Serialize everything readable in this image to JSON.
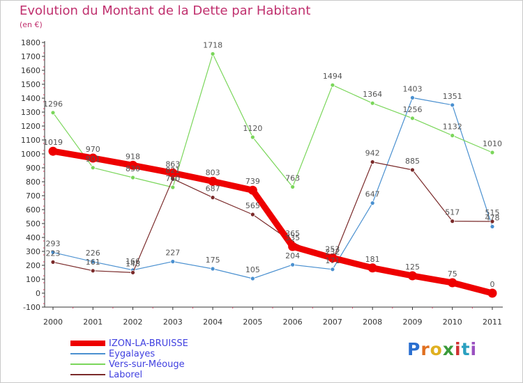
{
  "chart_data": {
    "type": "line",
    "title": "Evolution du Montant de la Dette par Habitant",
    "subtitle": "(en €)",
    "xlabel": "",
    "ylabel": "",
    "x": [
      "2000",
      "2001",
      "2002",
      "2003",
      "2004",
      "2005",
      "2006",
      "2007",
      "2008",
      "2009",
      "2010",
      "2011"
    ],
    "ylim": [
      -100,
      1800
    ],
    "yticks": [
      -100,
      0,
      100,
      200,
      300,
      400,
      500,
      600,
      700,
      800,
      900,
      1000,
      1100,
      1200,
      1300,
      1400,
      1500,
      1600,
      1700,
      1800
    ],
    "grid": false,
    "legend_position": "bottom-left",
    "series": [
      {
        "name": "IZON-LA-BRUISSE",
        "color": "#ee0000",
        "values": [
          1019,
          970,
          918,
          863,
          803,
          739,
          335,
          253,
          181,
          125,
          75,
          0
        ],
        "labels": [
          "1019",
          "970",
          "918",
          "863",
          "803",
          "739",
          "335",
          "253",
          "181",
          "125",
          "75",
          "0"
        ]
      },
      {
        "name": "Eygalayes",
        "color": "#4a90d0",
        "values": [
          293,
          226,
          166,
          227,
          175,
          105,
          204,
          171,
          647,
          1403,
          1351,
          478
        ],
        "labels": [
          "293",
          "226",
          "166",
          "227",
          "175",
          "105",
          "204",
          "171",
          "647",
          "1403",
          "1351",
          "478"
        ]
      },
      {
        "name": "Vers-sur-Méouge",
        "color": "#7ad65a",
        "values": [
          1296,
          901,
          830,
          760,
          1718,
          1120,
          763,
          1494,
          1364,
          1256,
          1132,
          1010
        ],
        "labels": [
          "1296",
          "901",
          "830",
          "760",
          "1718",
          "1120",
          "763",
          "1494",
          "1364",
          "1256",
          "1132",
          "1010"
        ]
      },
      {
        "name": "Laborel",
        "color": "#7a2a2a",
        "values": [
          223,
          161,
          148,
          821,
          687,
          565,
          365,
          232,
          942,
          885,
          517,
          515
        ],
        "labels": [
          "223",
          "161",
          "148",
          "821",
          "687",
          "565",
          "365",
          "232",
          "942",
          "885",
          "517",
          "515"
        ]
      }
    ]
  },
  "logo": {
    "letters": [
      "P",
      "r",
      "o",
      "x",
      "i",
      "t",
      "i"
    ],
    "colors": [
      "#2a6fd0",
      "#e07020",
      "#e0b020",
      "#3a9a3a",
      "#d03030",
      "#2aa0c0",
      "#9a50c0"
    ]
  }
}
